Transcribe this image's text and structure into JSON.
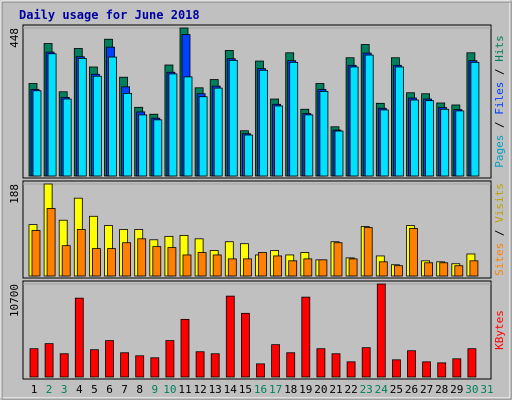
{
  "chart_data": [
    {
      "type": "bar",
      "title": "Daily usage for June 2018",
      "ylim": [
        0,
        448
      ],
      "yticks": [
        448
      ],
      "legend_separator": " / ",
      "series": [
        {
          "name": "Hits",
          "color": "#00805c",
          "values": [
            280,
            401,
            255,
            386,
            330,
            414,
            299,
            208,
            187,
            336,
            448,
            267,
            292,
            380,
            137,
            348,
            233,
            373,
            202,
            280,
            149,
            358,
            398,
            220,
            358,
            252,
            249,
            221,
            215,
            373,
            null
          ]
        },
        {
          "name": "Files",
          "color": "#0040ff",
          "values": [
            262,
            375,
            238,
            361,
            308,
            390,
            270,
            194,
            175,
            314,
            428,
            249,
            272,
            355,
            128,
            325,
            217,
            349,
            189,
            262,
            139,
            335,
            372,
            205,
            335,
            236,
            233,
            207,
            201,
            349,
            null
          ]
        },
        {
          "name": "Pages",
          "color": "#00e0ff",
          "values": [
            258,
            370,
            233,
            356,
            302,
            360,
            250,
            185,
            170,
            309,
            300,
            240,
            266,
            350,
            124,
            320,
            212,
            344,
            185,
            256,
            136,
            330,
            366,
            200,
            330,
            230,
            228,
            202,
            197,
            344,
            null
          ]
        }
      ]
    },
    {
      "type": "bar",
      "ylim": [
        0,
        188
      ],
      "yticks": [
        188
      ],
      "legend_separator": " / ",
      "series": [
        {
          "name": "Visits",
          "color": "#ffff00",
          "values": [
            105,
            188,
            114,
            159,
            122,
            103,
            95,
            95,
            74,
            81,
            83,
            76,
            52,
            70,
            66,
            43,
            52,
            43,
            48,
            33,
            70,
            37,
            101,
            41,
            23,
            103,
            31,
            29,
            25,
            45,
            null
          ]
        },
        {
          "name": "Sites",
          "color": "#ff8000",
          "values": [
            93,
            138,
            62,
            95,
            56,
            56,
            68,
            76,
            60,
            58,
            43,
            48,
            43,
            35,
            35,
            48,
            41,
            31,
            35,
            33,
            68,
            35,
            99,
            29,
            21,
            97,
            27,
            27,
            21,
            31,
            null
          ]
        }
      ]
    },
    {
      "type": "bar",
      "ylim": [
        0,
        10700
      ],
      "yticks": [
        10700
      ],
      "legend_separator": " / ",
      "categories": [
        "1",
        "2",
        "3",
        "4",
        "5",
        "6",
        "7",
        "8",
        "9",
        "10",
        "11",
        "12",
        "13",
        "14",
        "15",
        "16",
        "17",
        "18",
        "19",
        "20",
        "21",
        "22",
        "23",
        "24",
        "25",
        "26",
        "27",
        "28",
        "29",
        "30",
        "31"
      ],
      "label_colors": [
        "#000000",
        "#00805c",
        "#00805c",
        "#000000",
        "#000000",
        "#000000",
        "#000000",
        "#000000",
        "#00805c",
        "#00805c",
        "#000000",
        "#000000",
        "#000000",
        "#000000",
        "#000000",
        "#00805c",
        "#00805c",
        "#000000",
        "#000000",
        "#000000",
        "#000000",
        "#000000",
        "#00805c",
        "#00805c",
        "#000000",
        "#000000",
        "#000000",
        "#000000",
        "#000000",
        "#00805c",
        "#00805c"
      ],
      "series": [
        {
          "name": "KBytes",
          "color": "#ff0000",
          "values": [
            3256,
            3838,
            2675,
            9072,
            3140,
            4187,
            2791,
            2442,
            2210,
            4187,
            6630,
            2908,
            2675,
            9305,
            7327,
            1512,
            3721,
            2791,
            9188,
            3256,
            2675,
            1745,
            3373,
            10700,
            1977,
            3024,
            1745,
            1628,
            2093,
            3256,
            null
          ]
        }
      ]
    }
  ]
}
